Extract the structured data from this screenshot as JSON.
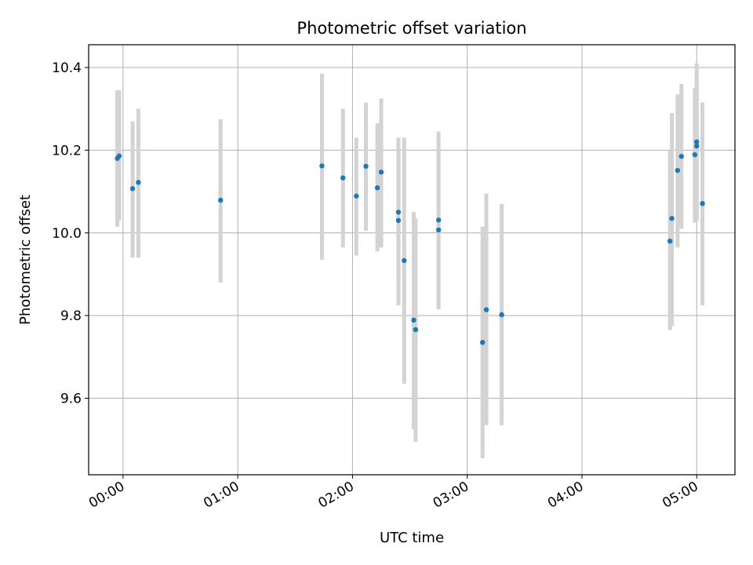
{
  "chart_data": {
    "type": "scatter",
    "title": "Photometric offset variation",
    "xlabel": "UTC time",
    "ylabel": "Photometric offset",
    "xlim": [
      "23:42",
      "05:20"
    ],
    "ylim": [
      9.415,
      10.455
    ],
    "x_ticks": [
      "00:00",
      "01:00",
      "02:00",
      "03:00",
      "04:00",
      "05:00"
    ],
    "y_ticks": [
      9.6,
      9.8,
      10.0,
      10.2,
      10.4
    ],
    "y_tick_labels": [
      "9.6",
      "9.8",
      "10.0",
      "10.2",
      "10.4"
    ],
    "grid": true,
    "error_bars": true,
    "marker_color": "#1f77b4",
    "errorbar_color": "#d3d3d3",
    "points": [
      {
        "time": "23:57",
        "value": 10.18,
        "low": 10.015,
        "high": 10.345
      },
      {
        "time": "23:58",
        "value": 10.186,
        "low": 10.03,
        "high": 10.345
      },
      {
        "time": "00:05",
        "value": 10.107,
        "low": 9.94,
        "high": 10.27
      },
      {
        "time": "00:08",
        "value": 10.122,
        "low": 9.94,
        "high": 10.3
      },
      {
        "time": "00:51",
        "value": 10.079,
        "low": 9.88,
        "high": 10.275
      },
      {
        "time": "01:44",
        "value": 10.162,
        "low": 9.935,
        "high": 10.385
      },
      {
        "time": "01:55",
        "value": 10.133,
        "low": 9.965,
        "high": 10.3
      },
      {
        "time": "02:02",
        "value": 10.089,
        "low": 9.945,
        "high": 10.23
      },
      {
        "time": "02:07",
        "value": 10.161,
        "low": 10.005,
        "high": 10.315
      },
      {
        "time": "02:13",
        "value": 10.109,
        "low": 9.955,
        "high": 10.265
      },
      {
        "time": "02:15",
        "value": 10.147,
        "low": 9.965,
        "high": 10.325
      },
      {
        "time": "02:24",
        "value": 10.05,
        "low": 9.875,
        "high": 10.23
      },
      {
        "time": "02:24",
        "value": 10.03,
        "low": 9.825,
        "high": 10.23
      },
      {
        "time": "02:27",
        "value": 9.933,
        "low": 9.635,
        "high": 10.23
      },
      {
        "time": "02:32",
        "value": 9.789,
        "low": 9.525,
        "high": 10.05
      },
      {
        "time": "02:33",
        "value": 9.766,
        "low": 9.495,
        "high": 10.035
      },
      {
        "time": "02:45",
        "value": 10.007,
        "low": 9.815,
        "high": 10.2
      },
      {
        "time": "02:45",
        "value": 10.031,
        "low": 9.815,
        "high": 10.245
      },
      {
        "time": "03:08",
        "value": 9.735,
        "low": 9.455,
        "high": 10.015
      },
      {
        "time": "03:10",
        "value": 9.814,
        "low": 9.535,
        "high": 10.095
      },
      {
        "time": "03:18",
        "value": 9.802,
        "low": 9.535,
        "high": 10.07
      },
      {
        "time": "04:46",
        "value": 9.98,
        "low": 9.765,
        "high": 10.2
      },
      {
        "time": "04:47",
        "value": 10.035,
        "low": 9.775,
        "high": 10.29
      },
      {
        "time": "04:50",
        "value": 10.151,
        "low": 9.965,
        "high": 10.335
      },
      {
        "time": "04:52",
        "value": 10.185,
        "low": 10.01,
        "high": 10.36
      },
      {
        "time": "04:59",
        "value": 10.189,
        "low": 10.025,
        "high": 10.35
      },
      {
        "time": "05:00",
        "value": 10.22,
        "low": 10.03,
        "high": 10.41
      },
      {
        "time": "05:00",
        "value": 10.21,
        "low": 10.04,
        "high": 10.38
      },
      {
        "time": "05:03",
        "value": 10.071,
        "low": 9.825,
        "high": 10.315
      }
    ]
  }
}
